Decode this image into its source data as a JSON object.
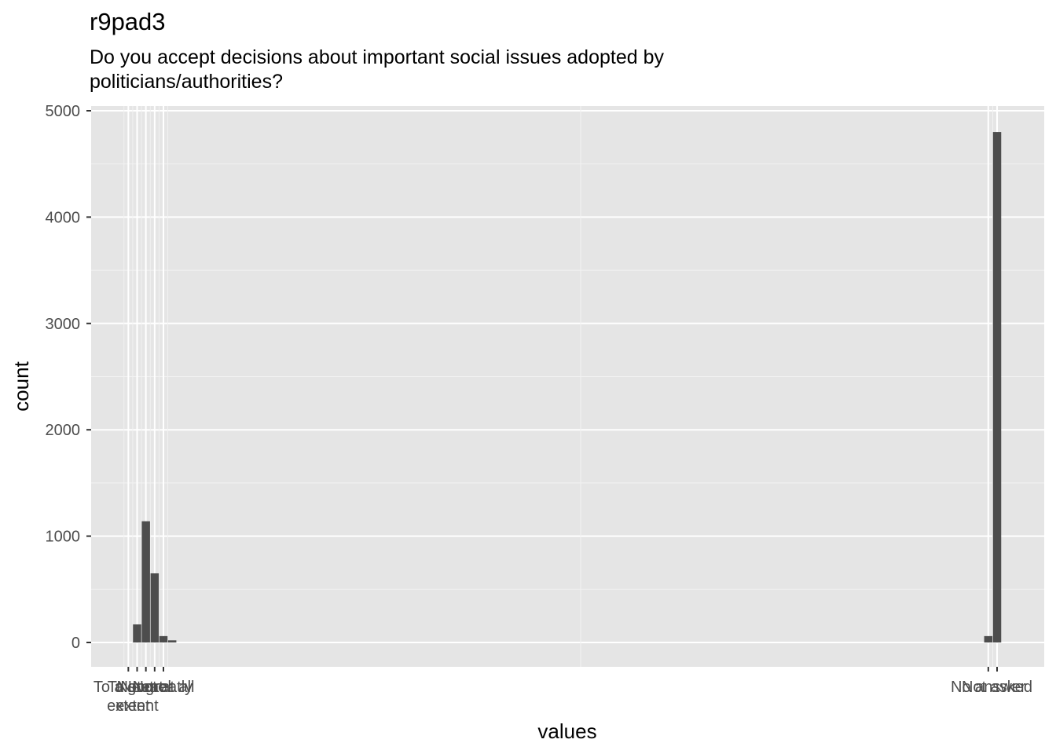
{
  "title": "r9pad3",
  "subtitle_lines": [
    "Do you accept decisions about important social issues adopted by",
    "politicians/authorities?"
  ],
  "chart_data": {
    "type": "bar",
    "xlabel": "values",
    "ylabel": "count",
    "ylim": [
      -230,
      5090
    ],
    "yticks": [
      0,
      1000,
      2000,
      3000,
      4000,
      5000
    ],
    "x_axis": "numeric codes, categories shown as overlapping tick labels",
    "grid": true,
    "bars": [
      {
        "x": 1,
        "value": 170
      },
      {
        "x": 2,
        "value": 1140
      },
      {
        "x": 3,
        "value": 650
      },
      {
        "x": 4,
        "value": 60
      },
      {
        "x": 5,
        "value": 20
      },
      {
        "x": 98,
        "value": 60
      },
      {
        "x": 99,
        "value": 4800
      }
    ],
    "xtick_labels": [
      {
        "x": 0,
        "lines": [
          "To a great",
          "extent"
        ]
      },
      {
        "x": 1,
        "lines": [
          "To some",
          "extent"
        ]
      },
      {
        "x": 2,
        "lines": [
          "Neutral"
        ]
      },
      {
        "x": 3,
        "lines": [
          "Not greatly"
        ]
      },
      {
        "x": 4,
        "lines": [
          "Not at all"
        ]
      },
      {
        "x": 98,
        "lines": [
          "No answer"
        ]
      },
      {
        "x": 99,
        "lines": [
          "Not asked"
        ]
      }
    ]
  }
}
